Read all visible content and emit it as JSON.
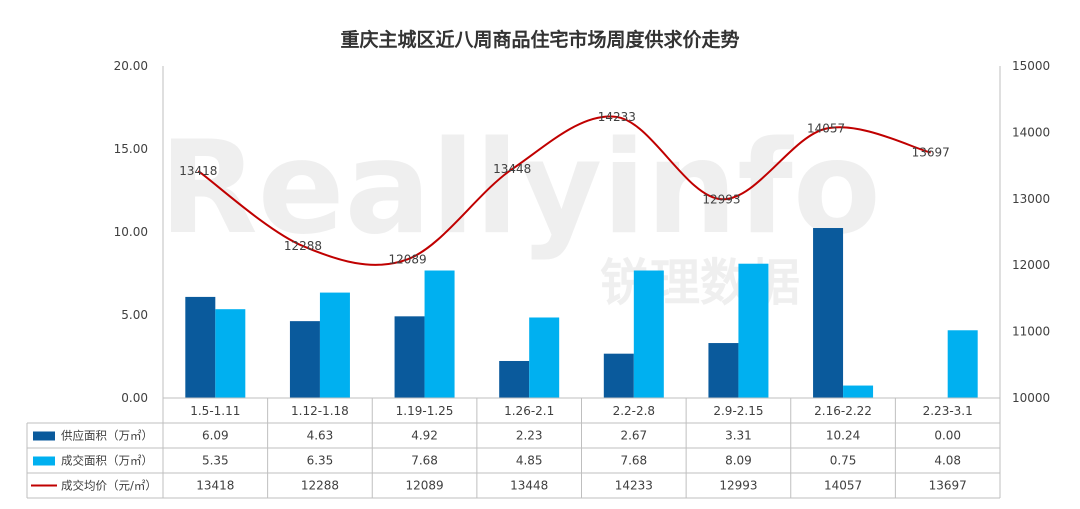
{
  "chart_data": {
    "type": "bar",
    "title": "重庆主城区近八周商品住宅市场周度供求价走势",
    "watermark": {
      "latin": "Reallyinfo",
      "chinese": "锐理数据"
    },
    "categories": [
      "1.5-1.11",
      "1.12-1.18",
      "1.19-1.25",
      "1.26-2.1",
      "2.2-2.8",
      "2.9-2.15",
      "2.16-2.22",
      "2.23-3.1"
    ],
    "left_axis": {
      "min": 0,
      "max": 20,
      "ticks": [
        "0.00",
        "5.00",
        "10.00",
        "15.00",
        "20.00"
      ]
    },
    "right_axis": {
      "min": 10000,
      "max": 15000,
      "ticks": [
        "10000",
        "11000",
        "12000",
        "13000",
        "14000",
        "15000"
      ]
    },
    "series": [
      {
        "name": "供应面积（万㎡）",
        "kind": "bar",
        "axis": "left",
        "color": "#0a5a9c",
        "values": [
          6.09,
          4.63,
          4.92,
          2.23,
          2.67,
          3.31,
          10.24,
          0.0
        ],
        "labels": [
          "6.09",
          "4.63",
          "4.92",
          "2.23",
          "2.67",
          "3.31",
          "10.24",
          "0.00"
        ]
      },
      {
        "name": "成交面积（万㎡）",
        "kind": "bar",
        "axis": "left",
        "color": "#00b0f0",
        "values": [
          5.35,
          6.35,
          7.68,
          4.85,
          7.68,
          8.09,
          0.75,
          4.08
        ],
        "labels": [
          "5.35",
          "6.35",
          "7.68",
          "4.85",
          "7.68",
          "8.09",
          "0.75",
          "4.08"
        ]
      },
      {
        "name": "成交均价（元/㎡）",
        "kind": "line",
        "axis": "right",
        "color": "#c00000",
        "values": [
          13418,
          12288,
          12089,
          13448,
          14233,
          12993,
          14057,
          13697
        ],
        "labels": [
          "13418",
          "12288",
          "12089",
          "13448",
          "14233",
          "12993",
          "14057",
          "13697"
        ]
      }
    ],
    "legend": "data-table"
  }
}
